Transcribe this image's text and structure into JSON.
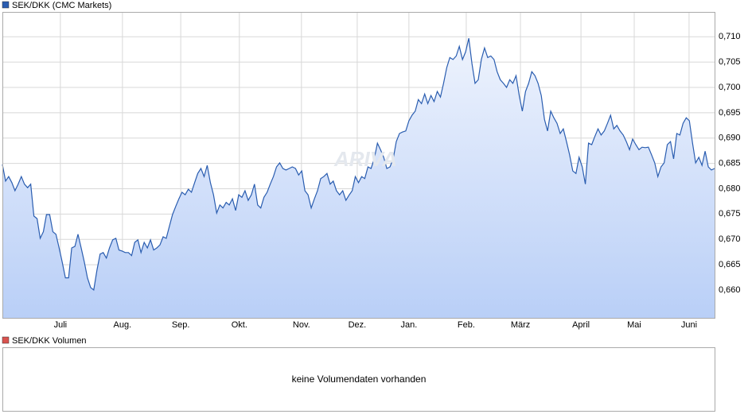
{
  "chart_data": {
    "type": "line",
    "area": true,
    "grid": true,
    "watermark": "ARIVA",
    "series": [
      {
        "name": "SEK/DKK (CMC Markets)",
        "color": "#2a5db0",
        "values": [
          0.6848,
          0.6815,
          0.6824,
          0.6812,
          0.6796,
          0.6809,
          0.6824,
          0.6809,
          0.6802,
          0.6809,
          0.6746,
          0.6741,
          0.6702,
          0.6715,
          0.6749,
          0.6749,
          0.6715,
          0.671,
          0.6683,
          0.6655,
          0.6624,
          0.6624,
          0.6683,
          0.6686,
          0.671,
          0.6683,
          0.6655,
          0.6624,
          0.6605,
          0.66,
          0.6639,
          0.6671,
          0.6674,
          0.6663,
          0.6683,
          0.6699,
          0.6702,
          0.6679,
          0.6677,
          0.6674,
          0.6674,
          0.6668,
          0.6694,
          0.6699,
          0.6674,
          0.6694,
          0.6683,
          0.6699,
          0.6679,
          0.6683,
          0.6689,
          0.6705,
          0.6702,
          0.6726,
          0.6749,
          0.6765,
          0.678,
          0.6793,
          0.6788,
          0.6799,
          0.6793,
          0.6812,
          0.683,
          0.684,
          0.6824,
          0.6846,
          0.6812,
          0.6788,
          0.6752,
          0.6768,
          0.6762,
          0.6773,
          0.6768,
          0.678,
          0.6757,
          0.6788,
          0.6783,
          0.6796,
          0.6777,
          0.6788,
          0.6809,
          0.6768,
          0.6762,
          0.6783,
          0.6793,
          0.6809,
          0.6824,
          0.6843,
          0.6851,
          0.684,
          0.6837,
          0.684,
          0.6843,
          0.684,
          0.6827,
          0.6835,
          0.6796,
          0.6788,
          0.6762,
          0.678,
          0.6796,
          0.682,
          0.6824,
          0.683,
          0.6809,
          0.6815,
          0.6796,
          0.6788,
          0.6796,
          0.6777,
          0.6787,
          0.6796,
          0.6824,
          0.6812,
          0.6824,
          0.682,
          0.6843,
          0.684,
          0.6859,
          0.689,
          0.6877,
          0.6862,
          0.684,
          0.6843,
          0.6859,
          0.6893,
          0.6909,
          0.6912,
          0.6914,
          0.6934,
          0.6945,
          0.6953,
          0.6976,
          0.6968,
          0.6987,
          0.6968,
          0.6984,
          0.6972,
          0.6992,
          0.6981,
          0.7008,
          0.7039,
          0.7059,
          0.7055,
          0.7062,
          0.7081,
          0.7055,
          0.707,
          0.7097,
          0.7047,
          0.7008,
          0.7015,
          0.7055,
          0.7078,
          0.7059,
          0.7062,
          0.7055,
          0.7031,
          0.7015,
          0.7008,
          0.7,
          0.7015,
          0.7008,
          0.7023,
          0.6984,
          0.6953,
          0.6992,
          0.7008,
          0.7031,
          0.7023,
          0.7008,
          0.6984,
          0.6937,
          0.6914,
          0.6953,
          0.694,
          0.6929,
          0.6909,
          0.6918,
          0.6893,
          0.6867,
          0.6835,
          0.683,
          0.6862,
          0.6843,
          0.6809,
          0.689,
          0.6887,
          0.6903,
          0.6918,
          0.6906,
          0.6914,
          0.6929,
          0.6945,
          0.6918,
          0.6925,
          0.6914,
          0.6906,
          0.6893,
          0.6877,
          0.6898,
          0.6887,
          0.6877,
          0.6882,
          0.6881,
          0.6882,
          0.6867,
          0.6851,
          0.6824,
          0.6843,
          0.6851,
          0.6887,
          0.6893,
          0.6859,
          0.6909,
          0.6906,
          0.6929,
          0.694,
          0.6934,
          0.689,
          0.6851,
          0.6862,
          0.6846,
          0.6874,
          0.6843,
          0.6837,
          0.684
        ]
      }
    ],
    "xlim": [
      0,
      226
    ],
    "xticks": [
      {
        "value": 18.4,
        "label": "Juli"
      },
      {
        "value": 38.1,
        "label": "Aug."
      },
      {
        "value": 56.6,
        "label": "Sep."
      },
      {
        "value": 75.2,
        "label": "Okt."
      },
      {
        "value": 94.9,
        "label": "Nov."
      },
      {
        "value": 112.6,
        "label": "Dez."
      },
      {
        "value": 129.0,
        "label": "Jan."
      },
      {
        "value": 147.2,
        "label": "Feb."
      },
      {
        "value": 164.4,
        "label": "März"
      },
      {
        "value": 183.6,
        "label": "April"
      },
      {
        "value": 200.5,
        "label": "Mai"
      },
      {
        "value": 217.9,
        "label": "Juni"
      }
    ],
    "ylim": [
      0.6545,
      0.7149
    ],
    "yticks": [
      {
        "value": 0.66,
        "label": "0,660"
      },
      {
        "value": 0.665,
        "label": "0,665"
      },
      {
        "value": 0.67,
        "label": "0,670"
      },
      {
        "value": 0.675,
        "label": "0,675"
      },
      {
        "value": 0.68,
        "label": "0,680"
      },
      {
        "value": 0.685,
        "label": "0,685"
      },
      {
        "value": 0.69,
        "label": "0,690"
      },
      {
        "value": 0.695,
        "label": "0,695"
      },
      {
        "value": 0.7,
        "label": "0,700"
      },
      {
        "value": 0.705,
        "label": "0,705"
      },
      {
        "value": 0.71,
        "label": "0,710"
      }
    ]
  },
  "volume_panel": {
    "name": "SEK/DKK Volumen",
    "color": "#d9534f",
    "message": "keine Volumendaten vorhanden"
  }
}
